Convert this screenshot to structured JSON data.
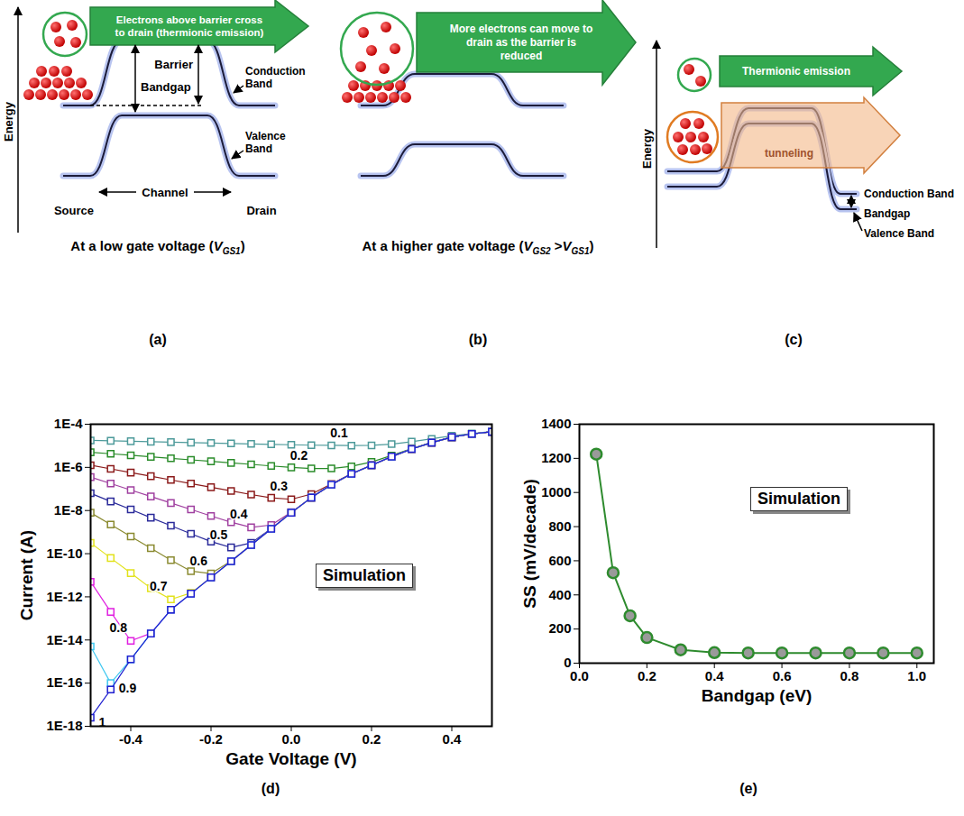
{
  "diagrams": [
    {
      "panel": "(a)",
      "energy_label": "Energy",
      "arrow_text": "Electrons above barrier cross to drain (thermionic emission)",
      "labels": {
        "barrier": "Barrier",
        "bandgap": "Bandgap",
        "conduction_band": "Conduction Band",
        "valence_band": "Valence Band",
        "channel": "Channel",
        "source": "Source",
        "drain": "Drain"
      },
      "caption": [
        {
          "text": "At a low gate voltage ("
        },
        {
          "text": "V",
          "style": "italic"
        },
        {
          "text": "GS1",
          "style": "sub"
        },
        {
          "text": ")"
        }
      ]
    },
    {
      "panel": "(b)",
      "arrow_text": "More electrons can move to drain as the barrier is reduced",
      "caption": [
        {
          "text": "At a higher gate voltage ("
        },
        {
          "text": "V",
          "style": "italic"
        },
        {
          "text": "GS2",
          "style": "sub"
        },
        {
          "text": " >"
        },
        {
          "text": "V",
          "style": "italic"
        },
        {
          "text": "GS1",
          "style": "sub"
        },
        {
          "text": ")"
        }
      ]
    },
    {
      "panel": "(c)",
      "energy_label": "Energy",
      "thermionic": "Thermionic emission",
      "tunneling": "tunneling",
      "labels": {
        "conduction_band": "Conduction Band",
        "bandgap": "Bandgap",
        "valence_band": "Valence Band"
      }
    }
  ],
  "chart_data": [
    {
      "type": "line",
      "panel": "(d)",
      "x_label": "Gate Voltage (V)",
      "y_label": "Current (A)",
      "annotations": [
        "Simulation"
      ],
      "log": "y",
      "marker": "square",
      "line_style": "solid",
      "xlim": [
        -0.5,
        0.5
      ],
      "xticks": [
        -0.4,
        -0.2,
        {
          "value": 0,
          "label": "0.0"
        },
        0.2,
        0.4
      ],
      "ylim": [
        1e-18,
        0.0001
      ],
      "yticks": [
        {
          "value": 1e-18,
          "label": "1E-18"
        },
        {
          "value": 1e-16,
          "label": "1E-16"
        },
        {
          "value": 1e-14,
          "label": "1E-14"
        },
        {
          "value": 1e-12,
          "label": "1E-12"
        },
        {
          "value": 1e-10,
          "label": "1E-10"
        },
        {
          "value": 1e-08,
          "label": "1E-8"
        },
        {
          "value": 1e-06,
          "label": "1E-6"
        },
        {
          "value": 0.0001,
          "label": "1E-4"
        }
      ],
      "x": [
        -0.5,
        -0.45,
        -0.4,
        -0.35,
        -0.3,
        -0.25,
        -0.2,
        -0.15,
        -0.1,
        -0.05,
        0,
        0.05,
        0.1,
        0.15,
        0.2,
        0.25,
        0.3,
        0.35,
        0.4,
        0.45,
        0.5
      ],
      "series": [
        {
          "name": "0.1",
          "color": "#4d9a9a",
          "values": [
            1.78e-05,
            1.7e-05,
            1.62e-05,
            1.55e-05,
            1.48e-05,
            1.41e-05,
            1.35e-05,
            1.29e-05,
            1.23e-05,
            1.17e-05,
            1.12e-05,
            1.07e-05,
            1.05e-05,
            1.02e-05,
            1.05e-05,
            1.2e-05,
            1.55e-05,
            2.1e-05,
            2.9e-05,
            3.7e-05,
            4.6e-05
          ]
        },
        {
          "name": "0.2",
          "color": "#2a8c2a",
          "values": [
            5.01e-06,
            4.27e-06,
            3.63e-06,
            3.09e-06,
            2.63e-06,
            2.24e-06,
            1.91e-06,
            1.62e-06,
            1.38e-06,
            1.17e-06,
            1e-06,
            8.91e-07,
            8.91e-07,
            1.12e-06,
            1.78e-06,
            3.55e-06,
            7.41e-06,
            1.45e-05,
            2.51e-05,
            3.55e-05,
            4.47e-05
          ]
        },
        {
          "name": "0.3",
          "color": "#8b1a1a",
          "values": [
            1.26e-06,
            8.51e-07,
            5.75e-07,
            3.89e-07,
            2.63e-07,
            1.78e-07,
            1.2e-07,
            8.13e-08,
            5.5e-08,
            3.89e-08,
            3.31e-08,
            5.75e-08,
            1.7e-07,
            5.13e-07,
            1.26e-06,
            3.16e-06,
            7.08e-06,
            1.41e-05,
            2.51e-05,
            3.55e-05,
            4.47e-05
          ]
        },
        {
          "name": "0.4",
          "color": "#a040a0",
          "values": [
            3.55e-07,
            1.78e-07,
            8.91e-08,
            4.47e-08,
            2.24e-08,
            1.12e-08,
            5.62e-09,
            2.88e-09,
            1.66e-09,
            2.14e-09,
            8.32e-09,
            3.98e-08,
            1.58e-07,
            5.01e-07,
            1.26e-06,
            3.16e-06,
            7.08e-06,
            1.41e-05,
            2.51e-05,
            3.55e-05,
            4.47e-05
          ]
        },
        {
          "name": "0.5",
          "color": "#2a2a9a",
          "values": [
            6.31e-08,
            2.63e-08,
            1.12e-08,
            4.68e-09,
            2e-09,
            8.32e-10,
            3.63e-10,
            1.95e-10,
            3.16e-10,
            1.45e-09,
            7.94e-09,
            3.98e-08,
            1.58e-07,
            5.01e-07,
            1.26e-06,
            3.16e-06,
            7.08e-06,
            1.41e-05,
            2.51e-05,
            3.55e-05,
            4.47e-05
          ]
        },
        {
          "name": "0.6",
          "color": "#8a8a30",
          "values": [
            7.94e-09,
            2.24e-09,
            6.31e-10,
            1.78e-10,
            5.01e-11,
            1.55e-11,
            1.2e-11,
            4.57e-11,
            2.51e-10,
            1.41e-09,
            7.94e-09,
            3.98e-08,
            1.58e-07,
            5.01e-07,
            1.26e-06,
            3.16e-06,
            7.08e-06,
            1.41e-05,
            2.51e-05,
            3.55e-05,
            4.47e-05
          ]
        },
        {
          "name": "0.7",
          "color": "#e2e21c",
          "values": [
            3.16e-10,
            6.31e-11,
            1.26e-11,
            2.51e-12,
            7.59e-13,
            1.51e-12,
            7.94e-12,
            4.47e-11,
            2.51e-10,
            1.41e-09,
            7.94e-09,
            3.98e-08,
            1.58e-07,
            5.01e-07,
            1.26e-06,
            3.16e-06,
            7.08e-06,
            1.41e-05,
            2.51e-05,
            3.55e-05,
            4.47e-05
          ]
        },
        {
          "name": "0.8",
          "color": "#e020e0",
          "values": [
            5.01e-12,
            2e-13,
            9.12e-15,
            2.04e-14,
            2.51e-13,
            1.41e-12,
            7.94e-12,
            4.47e-11,
            2.51e-10,
            1.41e-09,
            7.94e-09,
            3.98e-08,
            1.58e-07,
            5.01e-07,
            1.26e-06,
            3.16e-06,
            7.08e-06,
            1.41e-05,
            2.51e-05,
            3.55e-05,
            4.47e-05
          ]
        },
        {
          "name": "0.9",
          "color": "#40c8f0",
          "values": [
            5.01e-15,
            1e-16,
            1.26e-15,
            2e-14,
            2.51e-13,
            1.41e-12,
            7.94e-12,
            4.47e-11,
            2.51e-10,
            1.41e-09,
            7.94e-09,
            3.98e-08,
            1.58e-07,
            5.01e-07,
            1.26e-06,
            3.16e-06,
            7.08e-06,
            1.41e-05,
            2.51e-05,
            3.55e-05,
            4.47e-05
          ]
        },
        {
          "name": "1",
          "color": "#2020d0",
          "values": [
            2.51e-18,
            5.01e-17,
            1.26e-15,
            2e-14,
            2.51e-13,
            1.41e-12,
            7.94e-12,
            4.47e-11,
            2.51e-10,
            1.41e-09,
            7.94e-09,
            3.98e-08,
            1.58e-07,
            5.01e-07,
            1.26e-06,
            3.16e-06,
            7.08e-06,
            1.41e-05,
            2.51e-05,
            3.55e-05,
            4.47e-05
          ]
        }
      ]
    },
    {
      "type": "line",
      "panel": "(e)",
      "x_label": "Bandgap (eV)",
      "y_label": "SS (mV/decade)",
      "annotations": [
        "Simulation"
      ],
      "marker": "circle",
      "line_style": "solid",
      "color": "#2e8b2e",
      "xlim": [
        0,
        1.05
      ],
      "xticks": [
        {
          "value": 0,
          "label": "0.0"
        },
        0.2,
        0.4,
        0.6,
        0.8,
        {
          "value": 1,
          "label": "1.0"
        }
      ],
      "ylim": [
        0,
        1400
      ],
      "yticks": [
        0,
        200,
        400,
        600,
        800,
        1000,
        1200,
        1400
      ],
      "x": [
        0.05,
        0.1,
        0.15,
        0.2,
        0.3,
        0.4,
        0.5,
        0.6,
        0.7,
        0.8,
        0.9,
        1.0
      ],
      "values": [
        1225,
        530,
        278,
        150,
        78,
        62,
        60,
        60,
        60,
        60,
        60,
        60
      ]
    }
  ]
}
